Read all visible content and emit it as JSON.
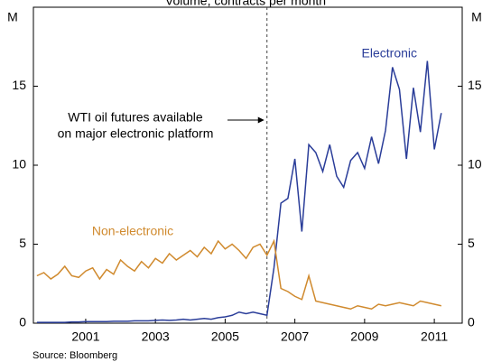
{
  "chart_data": {
    "type": "line",
    "title": "Volume, contracts per month",
    "y_unit": "M",
    "y2_unit": "M",
    "source": "Source: Bloomberg",
    "x": [
      1999.6,
      1999.8,
      2000.0,
      2000.2,
      2000.4,
      2000.6,
      2000.8,
      2001.0,
      2001.2,
      2001.4,
      2001.6,
      2001.8,
      2002.0,
      2002.2,
      2002.4,
      2002.6,
      2002.8,
      2003.0,
      2003.2,
      2003.4,
      2003.6,
      2003.8,
      2004.0,
      2004.2,
      2004.4,
      2004.6,
      2004.8,
      2005.0,
      2005.2,
      2005.4,
      2005.6,
      2005.8,
      2006.0,
      2006.2,
      2006.4,
      2006.6,
      2006.8,
      2007.0,
      2007.2,
      2007.4,
      2007.6,
      2007.8,
      2008.0,
      2008.2,
      2008.4,
      2008.6,
      2008.8,
      2009.0,
      2009.2,
      2009.4,
      2009.6,
      2009.8,
      2010.0,
      2010.2,
      2010.4,
      2010.6,
      2010.8,
      2011.0,
      2011.2
    ],
    "series": [
      {
        "name": "Electronic",
        "color": "#2a3d99",
        "values": [
          0.05,
          0.05,
          0.05,
          0.05,
          0.05,
          0.08,
          0.08,
          0.1,
          0.1,
          0.1,
          0.1,
          0.12,
          0.12,
          0.12,
          0.15,
          0.15,
          0.15,
          0.18,
          0.2,
          0.18,
          0.2,
          0.25,
          0.2,
          0.25,
          0.3,
          0.25,
          0.35,
          0.4,
          0.5,
          0.7,
          0.6,
          0.7,
          0.6,
          0.5,
          3.5,
          7.6,
          7.9,
          10.4,
          5.8,
          11.3,
          10.8,
          9.6,
          11.3,
          9.3,
          8.6,
          10.3,
          10.8,
          9.8,
          11.8,
          10.1,
          12.2,
          16.2,
          14.8,
          10.4,
          14.9,
          12.1,
          16.6,
          11.0,
          13.3
        ]
      },
      {
        "name": "Non-electronic",
        "color": "#d08a2e",
        "values": [
          3.0,
          3.2,
          2.8,
          3.1,
          3.6,
          3.0,
          2.9,
          3.3,
          3.5,
          2.8,
          3.4,
          3.1,
          4.0,
          3.6,
          3.3,
          3.9,
          3.5,
          4.1,
          3.8,
          4.4,
          4.0,
          4.3,
          4.6,
          4.2,
          4.8,
          4.4,
          5.2,
          4.7,
          5.0,
          4.6,
          4.1,
          4.8,
          5.0,
          4.3,
          5.2,
          2.2,
          2.0,
          1.7,
          1.5,
          3.0,
          1.4,
          1.3,
          1.2,
          1.1,
          1.0,
          0.9,
          1.1,
          1.0,
          0.9,
          1.2,
          1.1,
          1.2,
          1.3,
          1.2,
          1.1,
          1.4,
          1.3,
          1.2,
          1.1
        ]
      }
    ],
    "annotation": {
      "lines": [
        "WTI oil futures available",
        "on major electronic platform"
      ],
      "x": 2006.2
    },
    "xlim": [
      1999.5,
      2011.8
    ],
    "xticks": [
      2001,
      2003,
      2005,
      2007,
      2009,
      2011
    ],
    "ylim": [
      0,
      20
    ],
    "yticks": [
      0,
      5,
      10,
      15
    ],
    "y2lim": [
      0,
      20
    ],
    "y2ticks": [
      0,
      5,
      10,
      15
    ]
  }
}
